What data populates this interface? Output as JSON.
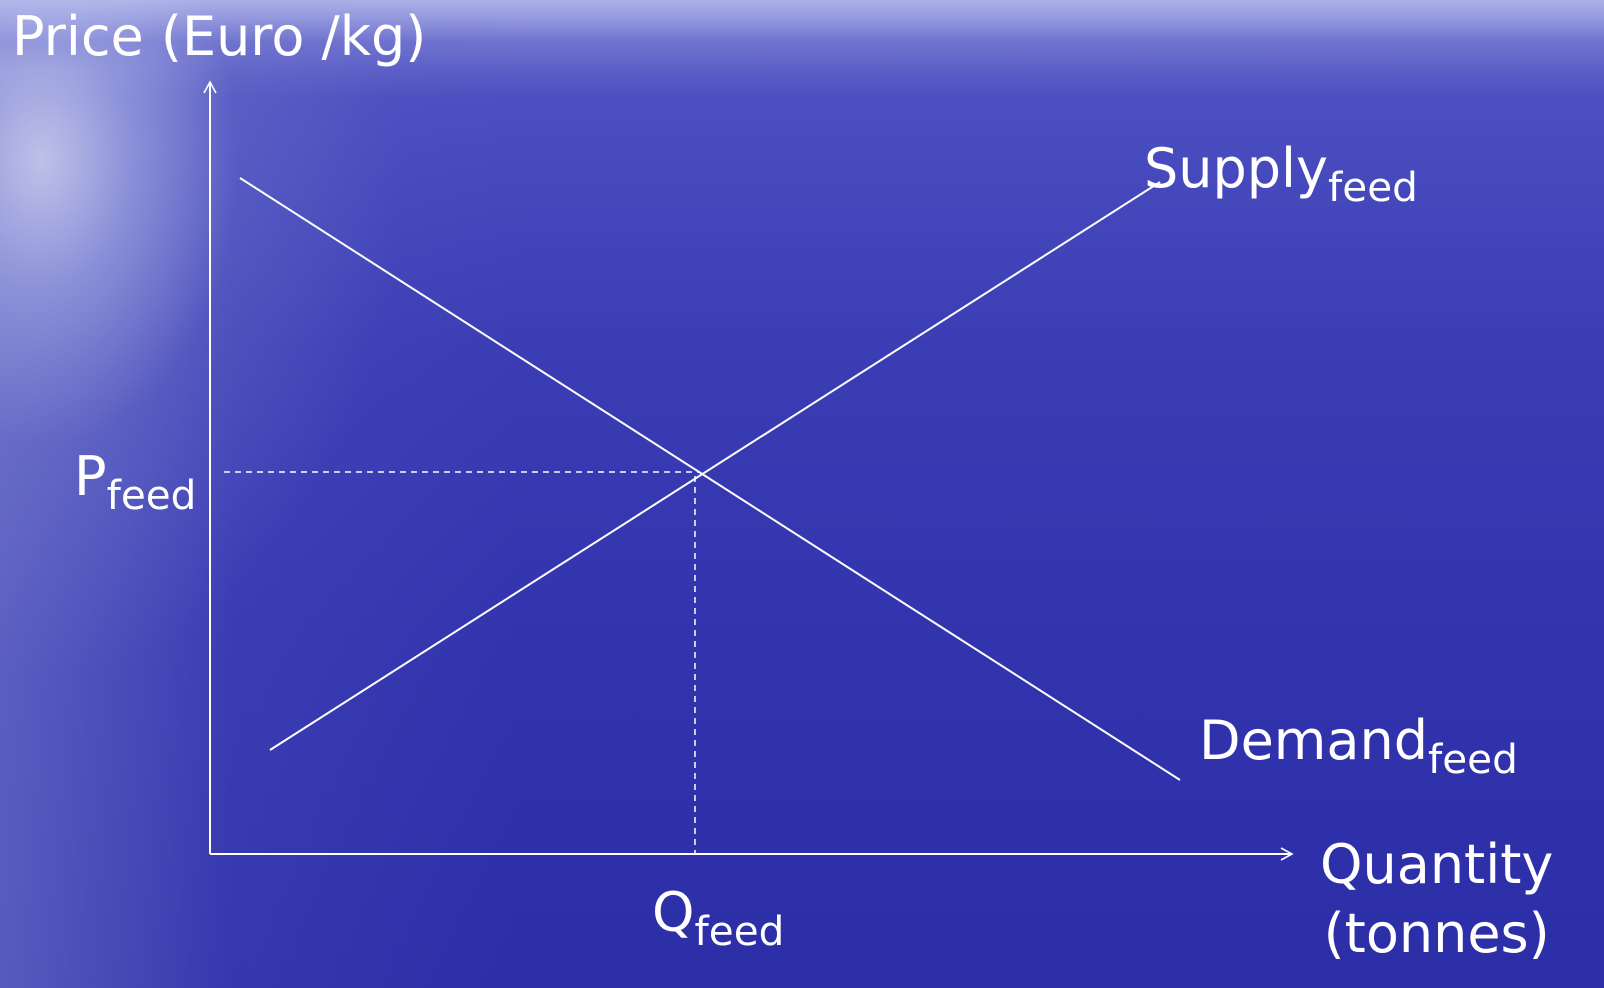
{
  "axes": {
    "y_label": "Price (Euro /kg)",
    "x_label_line1": "Quantity",
    "x_label_line2": "(tonnes)"
  },
  "curves": {
    "supply": {
      "name": "Supply",
      "subscript": "feed"
    },
    "demand": {
      "name": "Demand",
      "subscript": "feed"
    }
  },
  "equilibrium": {
    "price": {
      "name": "P",
      "subscript": "feed"
    },
    "quantity": {
      "name": "Q",
      "subscript": "feed"
    }
  },
  "colors": {
    "lines": "#ffffff",
    "background": "#3234ae",
    "text": "#ffffff"
  }
}
